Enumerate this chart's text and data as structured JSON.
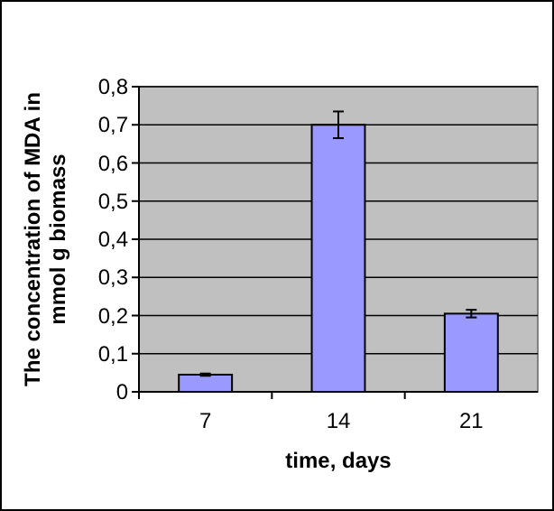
{
  "chart_data": {
    "type": "bar",
    "xlabel": "time, days",
    "ylabel": "The concentration of MDA in\nmmol g biomass",
    "categories": [
      "7",
      "14",
      "21"
    ],
    "values": [
      0.045,
      0.7,
      0.205
    ],
    "errors": [
      0.003,
      0.035,
      0.01
    ],
    "color": "#9999ff",
    "ylim": [
      0,
      0.8
    ],
    "yticks": [
      {
        "value": 0,
        "label": "0"
      },
      {
        "value": 0.1,
        "label": "0,1"
      },
      {
        "value": 0.2,
        "label": "0,2"
      },
      {
        "value": 0.3,
        "label": "0,3"
      },
      {
        "value": 0.4,
        "label": "0,4"
      },
      {
        "value": 0.5,
        "label": "0,5"
      },
      {
        "value": 0.6,
        "label": "0,6"
      },
      {
        "value": 0.7,
        "label": "0,7"
      },
      {
        "value": 0.8,
        "label": "0,8"
      }
    ],
    "grid": "y"
  }
}
